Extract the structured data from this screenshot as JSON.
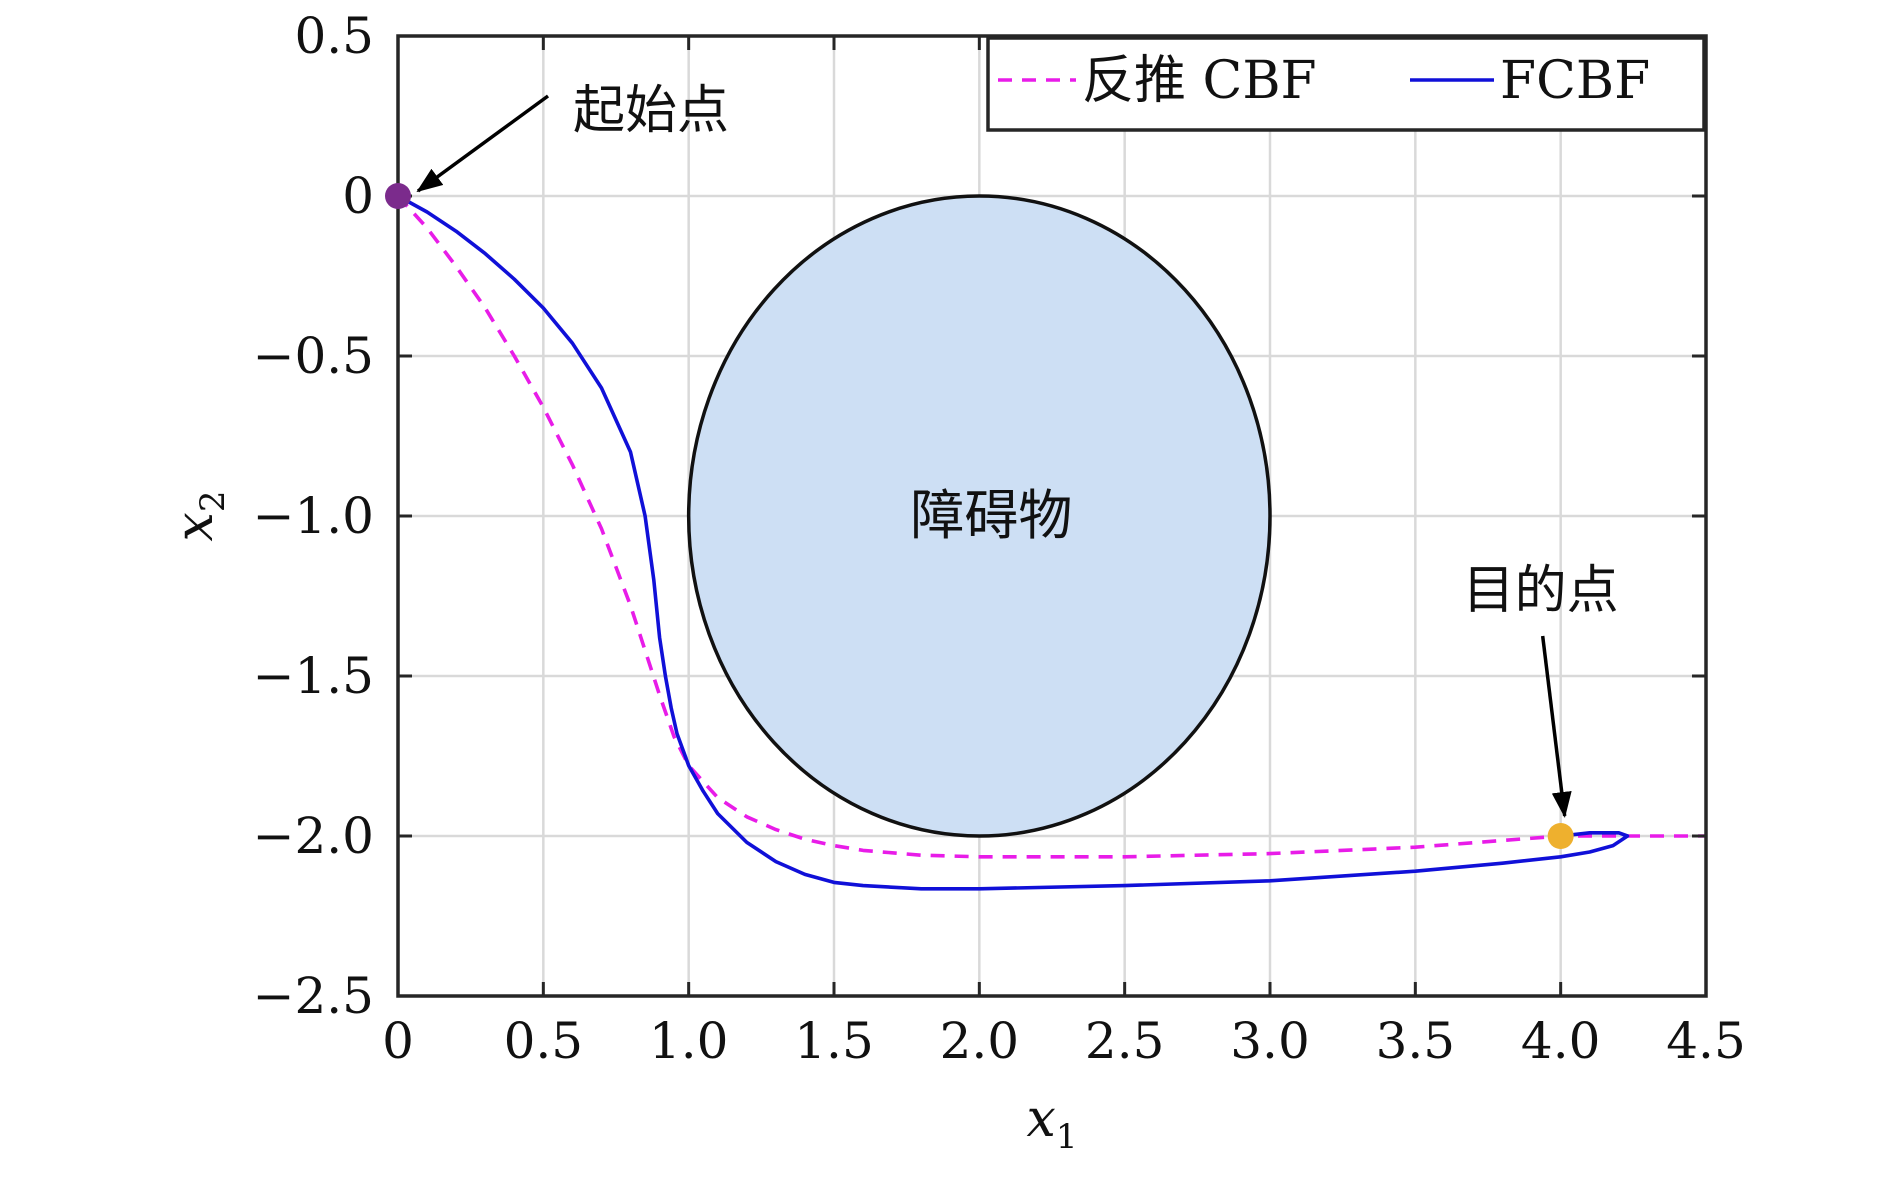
{
  "chart_data": {
    "type": "line",
    "xlabel": "x",
    "xlabel_sub": "1",
    "ylabel": "x",
    "ylabel_sub": "2",
    "xlim": [
      0,
      4.5
    ],
    "ylim": [
      -2.5,
      0.5
    ],
    "grid": true,
    "legend_position": "top-right",
    "x_ticks": [
      0,
      0.5,
      1.0,
      1.5,
      2.0,
      2.5,
      3.0,
      3.5,
      4.0,
      4.5
    ],
    "x_tick_labels": [
      "0",
      "0.5",
      "1.0",
      "1.5",
      "2.0",
      "2.5",
      "3.0",
      "3.5",
      "4.0",
      "4.5"
    ],
    "y_ticks": [
      0.5,
      0,
      -0.5,
      -1.0,
      -1.5,
      -2.0,
      -2.5
    ],
    "y_tick_labels": [
      "0.5",
      "0",
      "−0.5",
      "−1.0",
      "−1.5",
      "−2.0",
      "−2.5"
    ],
    "series": [
      {
        "name": "反推 CBF",
        "color": "#e81ce8",
        "style": "dashed",
        "x": [
          0,
          0.1,
          0.2,
          0.3,
          0.4,
          0.5,
          0.6,
          0.7,
          0.8,
          0.85,
          0.9,
          0.95,
          1.0,
          1.1,
          1.2,
          1.3,
          1.4,
          1.5,
          1.6,
          1.8,
          2.0,
          2.5,
          3.0,
          3.5,
          4.0,
          4.5
        ],
        "y": [
          0,
          -0.1,
          -0.22,
          -0.35,
          -0.5,
          -0.66,
          -0.84,
          -1.04,
          -1.28,
          -1.42,
          -1.56,
          -1.69,
          -1.78,
          -1.88,
          -1.94,
          -1.98,
          -2.01,
          -2.03,
          -2.045,
          -2.06,
          -2.065,
          -2.065,
          -2.055,
          -2.035,
          -2.0,
          -2.0
        ]
      },
      {
        "name": "FCBF",
        "color": "#1010d8",
        "style": "solid",
        "x": [
          0,
          0.1,
          0.2,
          0.3,
          0.4,
          0.5,
          0.6,
          0.7,
          0.8,
          0.85,
          0.88,
          0.9,
          0.92,
          0.94,
          0.96,
          1.0,
          1.05,
          1.1,
          1.2,
          1.3,
          1.4,
          1.5,
          1.6,
          1.8,
          2.0,
          2.5,
          3.0,
          3.5,
          3.8,
          4.0,
          4.1,
          4.18,
          4.23,
          4.2,
          4.1,
          4.0
        ],
        "y": [
          0,
          -0.05,
          -0.11,
          -0.18,
          -0.26,
          -0.35,
          -0.46,
          -0.6,
          -0.8,
          -1.0,
          -1.2,
          -1.38,
          -1.5,
          -1.6,
          -1.68,
          -1.78,
          -1.86,
          -1.93,
          -2.02,
          -2.08,
          -2.12,
          -2.145,
          -2.155,
          -2.165,
          -2.165,
          -2.155,
          -2.14,
          -2.11,
          -2.085,
          -2.065,
          -2.05,
          -2.03,
          -2.0,
          -1.99,
          -1.99,
          -2.0
        ]
      }
    ],
    "obstacle": {
      "label": "障碍物",
      "center": [
        2.0,
        -1.0
      ],
      "radius_x": 1.0,
      "radius_y": 1.0,
      "fill": "#cddff4",
      "stroke": "#111111"
    },
    "points": [
      {
        "label": "起始点",
        "x": 0,
        "y": 0,
        "color": "#7b2b8c"
      },
      {
        "label": "目的点",
        "x": 4.0,
        "y": -2.0,
        "color": "#eeb02e"
      }
    ],
    "colors": {
      "grid": "#d9d9d9",
      "frame": "#262626",
      "arrow": "#000000"
    }
  }
}
